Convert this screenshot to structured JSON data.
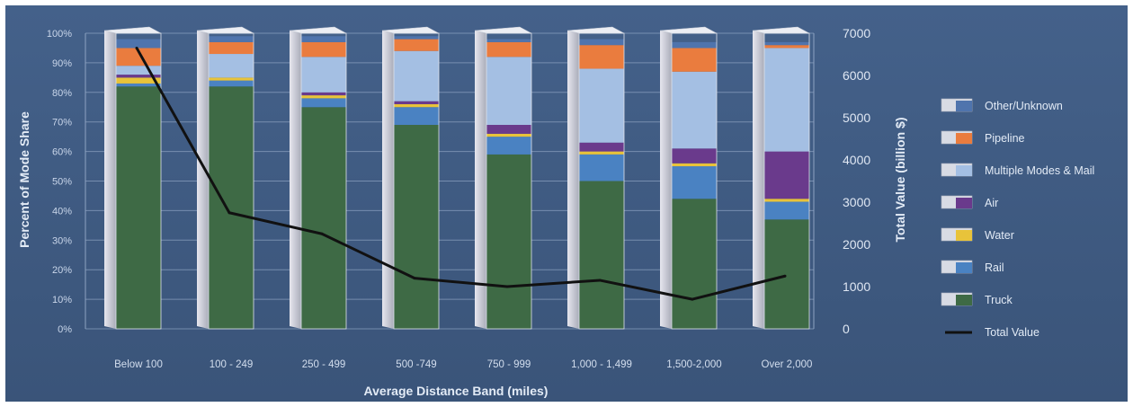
{
  "chart_data": {
    "type": "bar",
    "stacked": true,
    "title": "",
    "xlabel": "Average Distance Band (miles)",
    "ylabel": "Percent of Mode Share",
    "y2label": "Total Value (billion $)",
    "ylim": [
      0,
      100
    ],
    "y2lim": [
      0,
      7000
    ],
    "yticks": [
      "0%",
      "10%",
      "20%",
      "30%",
      "40%",
      "50%",
      "60%",
      "70%",
      "80%",
      "90%",
      "100%"
    ],
    "y2ticks": [
      "0",
      "1000",
      "2000",
      "3000",
      "4000",
      "5000",
      "6000",
      "7000"
    ],
    "grid": true,
    "legend_position": "right",
    "categories": [
      "Below 100",
      "100 - 249",
      "250 - 499",
      "500 -749",
      "750 - 999",
      "1,000 - 1,499",
      "1,500-2,000",
      "Over 2,000"
    ],
    "series": [
      {
        "name": "Truck",
        "color": "#3e6a45",
        "values": [
          82,
          82,
          75,
          69,
          59,
          50,
          44,
          37
        ]
      },
      {
        "name": "Rail",
        "color": "#4a82c2",
        "values": [
          1,
          2,
          3,
          6,
          6,
          9,
          11,
          6
        ]
      },
      {
        "name": "Water",
        "color": "#e8c33a",
        "values": [
          2,
          1,
          1,
          1,
          1,
          1,
          1,
          1
        ]
      },
      {
        "name": "Air",
        "color": "#6a3a8c",
        "values": [
          1,
          0,
          1,
          1,
          3,
          3,
          5,
          16
        ]
      },
      {
        "name": "Multiple Modes & Mail",
        "color": "#a4bfe3",
        "values": [
          3,
          8,
          12,
          17,
          23,
          25,
          26,
          35
        ]
      },
      {
        "name": "Pipeline",
        "color": "#ea7c3e",
        "values": [
          6,
          4,
          5,
          4,
          5,
          8,
          8,
          1
        ]
      },
      {
        "name": "Other/Unknown",
        "color": "#4f74ad",
        "values": [
          3,
          2,
          2,
          1,
          1,
          2,
          2,
          1
        ]
      }
    ],
    "line": {
      "name": "Total Value",
      "color": "#111111",
      "axis": "right",
      "values": [
        6650,
        2750,
        2250,
        1200,
        1000,
        1150,
        700,
        1250
      ]
    }
  }
}
